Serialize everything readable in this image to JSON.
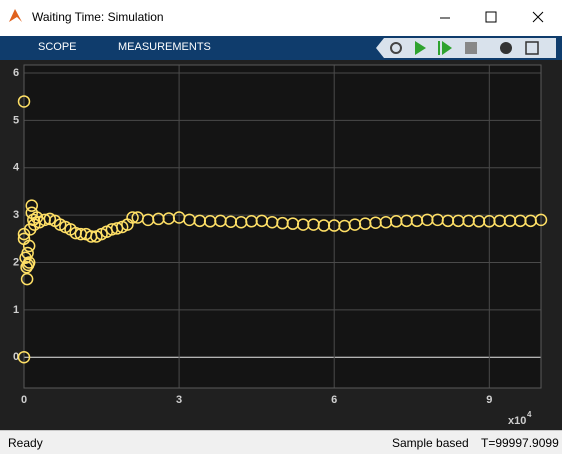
{
  "window": {
    "title": "Waiting Time: Simulation"
  },
  "toolbar": {
    "tabs": [
      "SCOPE",
      "MEASUREMENTS"
    ]
  },
  "chart_data": {
    "type": "scatter",
    "x": [
      0,
      0,
      0,
      0,
      0.03,
      0.05,
      0.06,
      0.07,
      0.08,
      0.1,
      0.1,
      0.12,
      0.15,
      0.15,
      0.18,
      0.2,
      0.25,
      0.3,
      0.4,
      0.5,
      0.6,
      0.7,
      0.8,
      0.9,
      1.0,
      1.1,
      1.2,
      1.3,
      1.4,
      1.5,
      1.6,
      1.7,
      1.8,
      1.9,
      2.0,
      2.1,
      2.2,
      2.4,
      2.6,
      2.8,
      3.0,
      3.2,
      3.4,
      3.6,
      3.8,
      4.0,
      4.2,
      4.4,
      4.6,
      4.8,
      5.0,
      5.2,
      5.4,
      5.6,
      5.8,
      6.0,
      6.2,
      6.4,
      6.6,
      6.8,
      7.0,
      7.2,
      7.4,
      7.6,
      7.8,
      8.0,
      8.2,
      8.4,
      8.6,
      8.8,
      9.0,
      9.2,
      9.4,
      9.6,
      9.8,
      10.0
    ],
    "values": [
      0,
      5.4,
      2.6,
      2.5,
      2.1,
      1.9,
      1.65,
      2.2,
      1.95,
      2.35,
      2.0,
      2.7,
      3.2,
      3.05,
      2.9,
      2.8,
      2.95,
      2.85,
      2.9,
      2.92,
      2.88,
      2.8,
      2.75,
      2.7,
      2.62,
      2.6,
      2.6,
      2.55,
      2.55,
      2.6,
      2.65,
      2.7,
      2.72,
      2.75,
      2.8,
      2.95,
      2.95,
      2.9,
      2.92,
      2.93,
      2.95,
      2.9,
      2.88,
      2.87,
      2.88,
      2.86,
      2.85,
      2.87,
      2.88,
      2.85,
      2.83,
      2.82,
      2.8,
      2.8,
      2.78,
      2.78,
      2.77,
      2.8,
      2.82,
      2.84,
      2.85,
      2.87,
      2.88,
      2.88,
      2.9,
      2.9,
      2.88,
      2.88,
      2.88,
      2.87,
      2.87,
      2.88,
      2.88,
      2.88,
      2.88,
      2.9
    ],
    "color": "#ffe066",
    "xlim": [
      0,
      10
    ],
    "ylim": [
      -0.65,
      6.17
    ],
    "xticks": [
      0,
      3,
      6,
      9
    ],
    "yticks": [
      0,
      1,
      2,
      3,
      4,
      5,
      6
    ],
    "x_exponent": {
      "base": "x10",
      "power": "4"
    },
    "grid": true
  },
  "status": {
    "left": "Ready",
    "mode": "Sample based",
    "time": "T=99997.9099"
  }
}
